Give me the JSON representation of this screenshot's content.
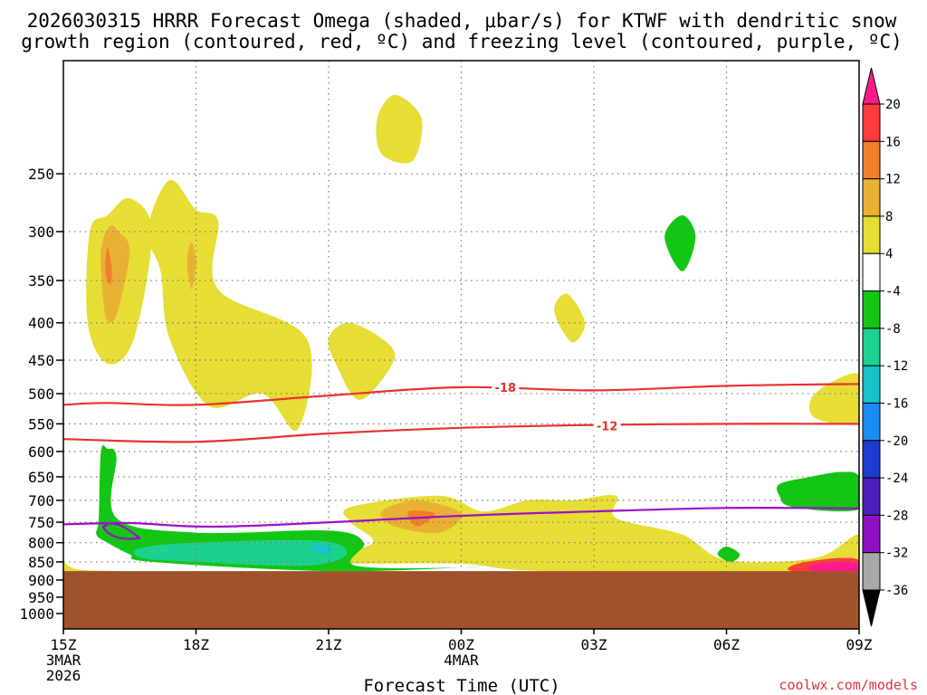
{
  "chart_data": {
    "type": "contour",
    "title_line1": "2026030315 HRRR Forecast Omega (shaded, μbar/s) for KTWF with dendritic snow",
    "title_line2": "growth region (contoured, red, ºC) and freezing level (contoured, purple, ºC)",
    "xlabel": "Forecast Time (UTC)",
    "x_ticks": [
      "15Z",
      "18Z",
      "21Z",
      "00Z",
      "03Z",
      "06Z",
      "09Z"
    ],
    "x_sublabels": {
      "0": [
        "3MAR",
        "2026"
      ],
      "3": [
        "4MAR"
      ]
    },
    "x_range_hours": [
      0,
      18
    ],
    "y_ticks": [
      250,
      300,
      350,
      400,
      450,
      500,
      550,
      600,
      650,
      700,
      750,
      800,
      850,
      900,
      950,
      1000
    ],
    "y_range_hPa": [
      175,
      1050
    ],
    "terrain_top_hPa": 875,
    "colorbar_labels": [
      "20",
      "16",
      "12",
      "8",
      "4",
      "-4",
      "-8",
      "-12",
      "-16",
      "-20",
      "-24",
      "-28",
      "-32",
      "-36"
    ],
    "colorbar_colors": [
      "#ff1a8c",
      "#ff3b3b",
      "#f07f2a",
      "#e9b133",
      "#e6dd35",
      "#ffffff",
      "#13c613",
      "#1dd28e",
      "#15c3c8",
      "#1a8cf0",
      "#1e3ccf",
      "#4b1fb8",
      "#8f10c0",
      "#a8a8a8",
      "#000000"
    ],
    "contours": [
      {
        "label": "-18",
        "color": "#ea3030",
        "points": [
          [
            0,
            518
          ],
          [
            1,
            515
          ],
          [
            3,
            518
          ],
          [
            6,
            503
          ],
          [
            9,
            490
          ],
          [
            12,
            495
          ],
          [
            15,
            488
          ],
          [
            18,
            485
          ]
        ]
      },
      {
        "label": "-12",
        "color": "#ea3030",
        "points": [
          [
            0,
            577
          ],
          [
            3,
            582
          ],
          [
            6,
            567
          ],
          [
            9,
            557
          ],
          [
            12,
            552
          ],
          [
            15,
            550
          ],
          [
            18,
            550
          ]
        ]
      },
      {
        "label": "0",
        "color": "#9a10c8",
        "points": [
          [
            0,
            755
          ],
          [
            1.5,
            752
          ],
          [
            3.8,
            760
          ],
          [
            9,
            735
          ],
          [
            12,
            725
          ],
          [
            15,
            717
          ],
          [
            18,
            718
          ]
        ]
      }
    ],
    "contour_labels": [
      {
        "text": "-18",
        "x_hour": 10,
        "p": 490
      },
      {
        "text": "-12",
        "x_hour": 12.3,
        "p": 553
      }
    ],
    "omega_regions": [
      {
        "level": "4",
        "color": "#e6dd35",
        "points": [
          [
            1.0,
            285
          ],
          [
            1.5,
            270
          ],
          [
            2.0,
            300
          ],
          [
            1.6,
            420
          ],
          [
            1.0,
            455
          ],
          [
            0.55,
            400
          ],
          [
            0.6,
            300
          ]
        ]
      },
      {
        "level": "8",
        "color": "#e9b133",
        "points": [
          [
            1.05,
            295
          ],
          [
            1.25,
            300
          ],
          [
            1.5,
            320
          ],
          [
            1.2,
            390
          ],
          [
            0.95,
            390
          ],
          [
            0.85,
            320
          ]
        ]
      },
      {
        "level": "12",
        "color": "#f07f2a",
        "points": [
          [
            1.0,
            315
          ],
          [
            1.1,
            340
          ],
          [
            1.05,
            355
          ],
          [
            0.95,
            340
          ]
        ]
      },
      {
        "level": "4",
        "color": "#e6dd35",
        "points": [
          [
            2.4,
            255
          ],
          [
            3,
            280
          ],
          [
            3.5,
            290
          ],
          [
            3.5,
            360
          ],
          [
            5.5,
            420
          ],
          [
            5.3,
            560
          ],
          [
            4.5,
            500
          ],
          [
            3.3,
            520
          ],
          [
            2.4,
            420
          ],
          [
            2.2,
            340
          ],
          [
            1.9,
            300
          ]
        ]
      },
      {
        "level": "8",
        "color": "#e9b133",
        "points": [
          [
            2.9,
            310
          ],
          [
            3,
            330
          ],
          [
            2.9,
            360
          ],
          [
            2.8,
            330
          ]
        ]
      },
      {
        "level": "4",
        "color": "#e6dd35",
        "points": [
          [
            7.5,
            195
          ],
          [
            8.1,
            210
          ],
          [
            7.9,
            240
          ],
          [
            7.2,
            235
          ],
          [
            7.1,
            210
          ]
        ]
      },
      {
        "level": "4",
        "color": "#e6dd35",
        "points": [
          [
            6.5,
            400
          ],
          [
            7.4,
            430
          ],
          [
            7.4,
            460
          ],
          [
            6.7,
            510
          ],
          [
            6.2,
            460
          ],
          [
            6.0,
            420
          ]
        ]
      },
      {
        "level": "4",
        "color": "#e6dd35",
        "points": [
          [
            11.4,
            365
          ],
          [
            11.8,
            400
          ],
          [
            11.5,
            425
          ],
          [
            11.1,
            385
          ]
        ]
      },
      {
        "level": "4",
        "color": "#e6dd35",
        "points": [
          [
            6.5,
            715
          ],
          [
            8.5,
            690
          ],
          [
            9.5,
            725
          ],
          [
            10.5,
            700
          ],
          [
            11.5,
            700
          ],
          [
            12.5,
            690
          ],
          [
            12.5,
            740
          ],
          [
            14,
            780
          ],
          [
            15,
            845
          ],
          [
            17,
            840
          ],
          [
            18,
            780
          ],
          [
            18,
            875
          ],
          [
            11,
            875
          ],
          [
            9,
            855
          ],
          [
            6,
            850
          ],
          [
            7,
            800
          ],
          [
            6.5,
            750
          ]
        ]
      },
      {
        "level": "8",
        "color": "#e9b133",
        "points": [
          [
            7.2,
            725
          ],
          [
            8,
            700
          ],
          [
            9.0,
            730
          ],
          [
            8.5,
            775
          ],
          [
            7.5,
            760
          ]
        ]
      },
      {
        "level": "12",
        "color": "#f07f2a",
        "points": [
          [
            7.8,
            725
          ],
          [
            8.4,
            730
          ],
          [
            8.0,
            760
          ]
        ]
      },
      {
        "level": "4",
        "color": "#e6dd35",
        "points": [
          [
            0,
            850
          ],
          [
            0.3,
            870
          ],
          [
            1.2,
            875
          ],
          [
            0,
            875
          ]
        ]
      },
      {
        "level": "4",
        "color": "#e6dd35",
        "points": [
          [
            17.0,
            500
          ],
          [
            18,
            470
          ],
          [
            18,
            545
          ],
          [
            17.0,
            540
          ]
        ]
      },
      {
        "level": "-4",
        "color": "#13c613",
        "points": [
          [
            1.0,
            595
          ],
          [
            1.2,
            610
          ],
          [
            1.2,
            740
          ],
          [
            3,
            775
          ],
          [
            6,
            770
          ],
          [
            6.8,
            800
          ],
          [
            6.6,
            860
          ],
          [
            9,
            865
          ],
          [
            9.7,
            855
          ],
          [
            9,
            865
          ],
          [
            6,
            875
          ],
          [
            2,
            850
          ],
          [
            1.5,
            830
          ],
          [
            1,
            800
          ],
          [
            0.75,
            780
          ],
          [
            0.8,
            740
          ],
          [
            0.85,
            600
          ]
        ]
      },
      {
        "level": "-8",
        "color": "#1dd28e",
        "points": [
          [
            1.7,
            815
          ],
          [
            3,
            800
          ],
          [
            5.8,
            795
          ],
          [
            6.4,
            830
          ],
          [
            5.5,
            860
          ],
          [
            3,
            850
          ],
          [
            1.8,
            840
          ]
        ]
      },
      {
        "level": "-12",
        "color": "#15c3c8",
        "points": [
          [
            5.8,
            805
          ],
          [
            6.1,
            815
          ],
          [
            5.9,
            830
          ],
          [
            5.6,
            815
          ]
        ]
      },
      {
        "level": "-4",
        "color": "#13c613",
        "points": [
          [
            14.0,
            285
          ],
          [
            14.3,
            305
          ],
          [
            14.0,
            340
          ],
          [
            13.6,
            305
          ]
        ]
      },
      {
        "level": "-4",
        "color": "#13c613",
        "points": [
          [
            16.2,
            665
          ],
          [
            16.9,
            650
          ],
          [
            17.6,
            640
          ],
          [
            18,
            650
          ],
          [
            18,
            720
          ],
          [
            16.5,
            715
          ],
          [
            16.2,
            690
          ]
        ]
      },
      {
        "level": "-4",
        "color": "#13c613",
        "points": [
          [
            15.0,
            810
          ],
          [
            15.3,
            830
          ],
          [
            15.1,
            850
          ],
          [
            14.8,
            830
          ]
        ]
      },
      {
        "level": "16",
        "color": "#ff3b3b",
        "points": [
          [
            16.6,
            855
          ],
          [
            17.5,
            840
          ],
          [
            18,
            845
          ],
          [
            18,
            875
          ],
          [
            16.5,
            875
          ]
        ]
      },
      {
        "level": "20",
        "color": "#ff1a8c",
        "points": [
          [
            16.9,
            860
          ],
          [
            17.5,
            850
          ],
          [
            18,
            855
          ],
          [
            18,
            875
          ],
          [
            17,
            875
          ]
        ]
      }
    ]
  },
  "credit": "coolwx.com/models"
}
